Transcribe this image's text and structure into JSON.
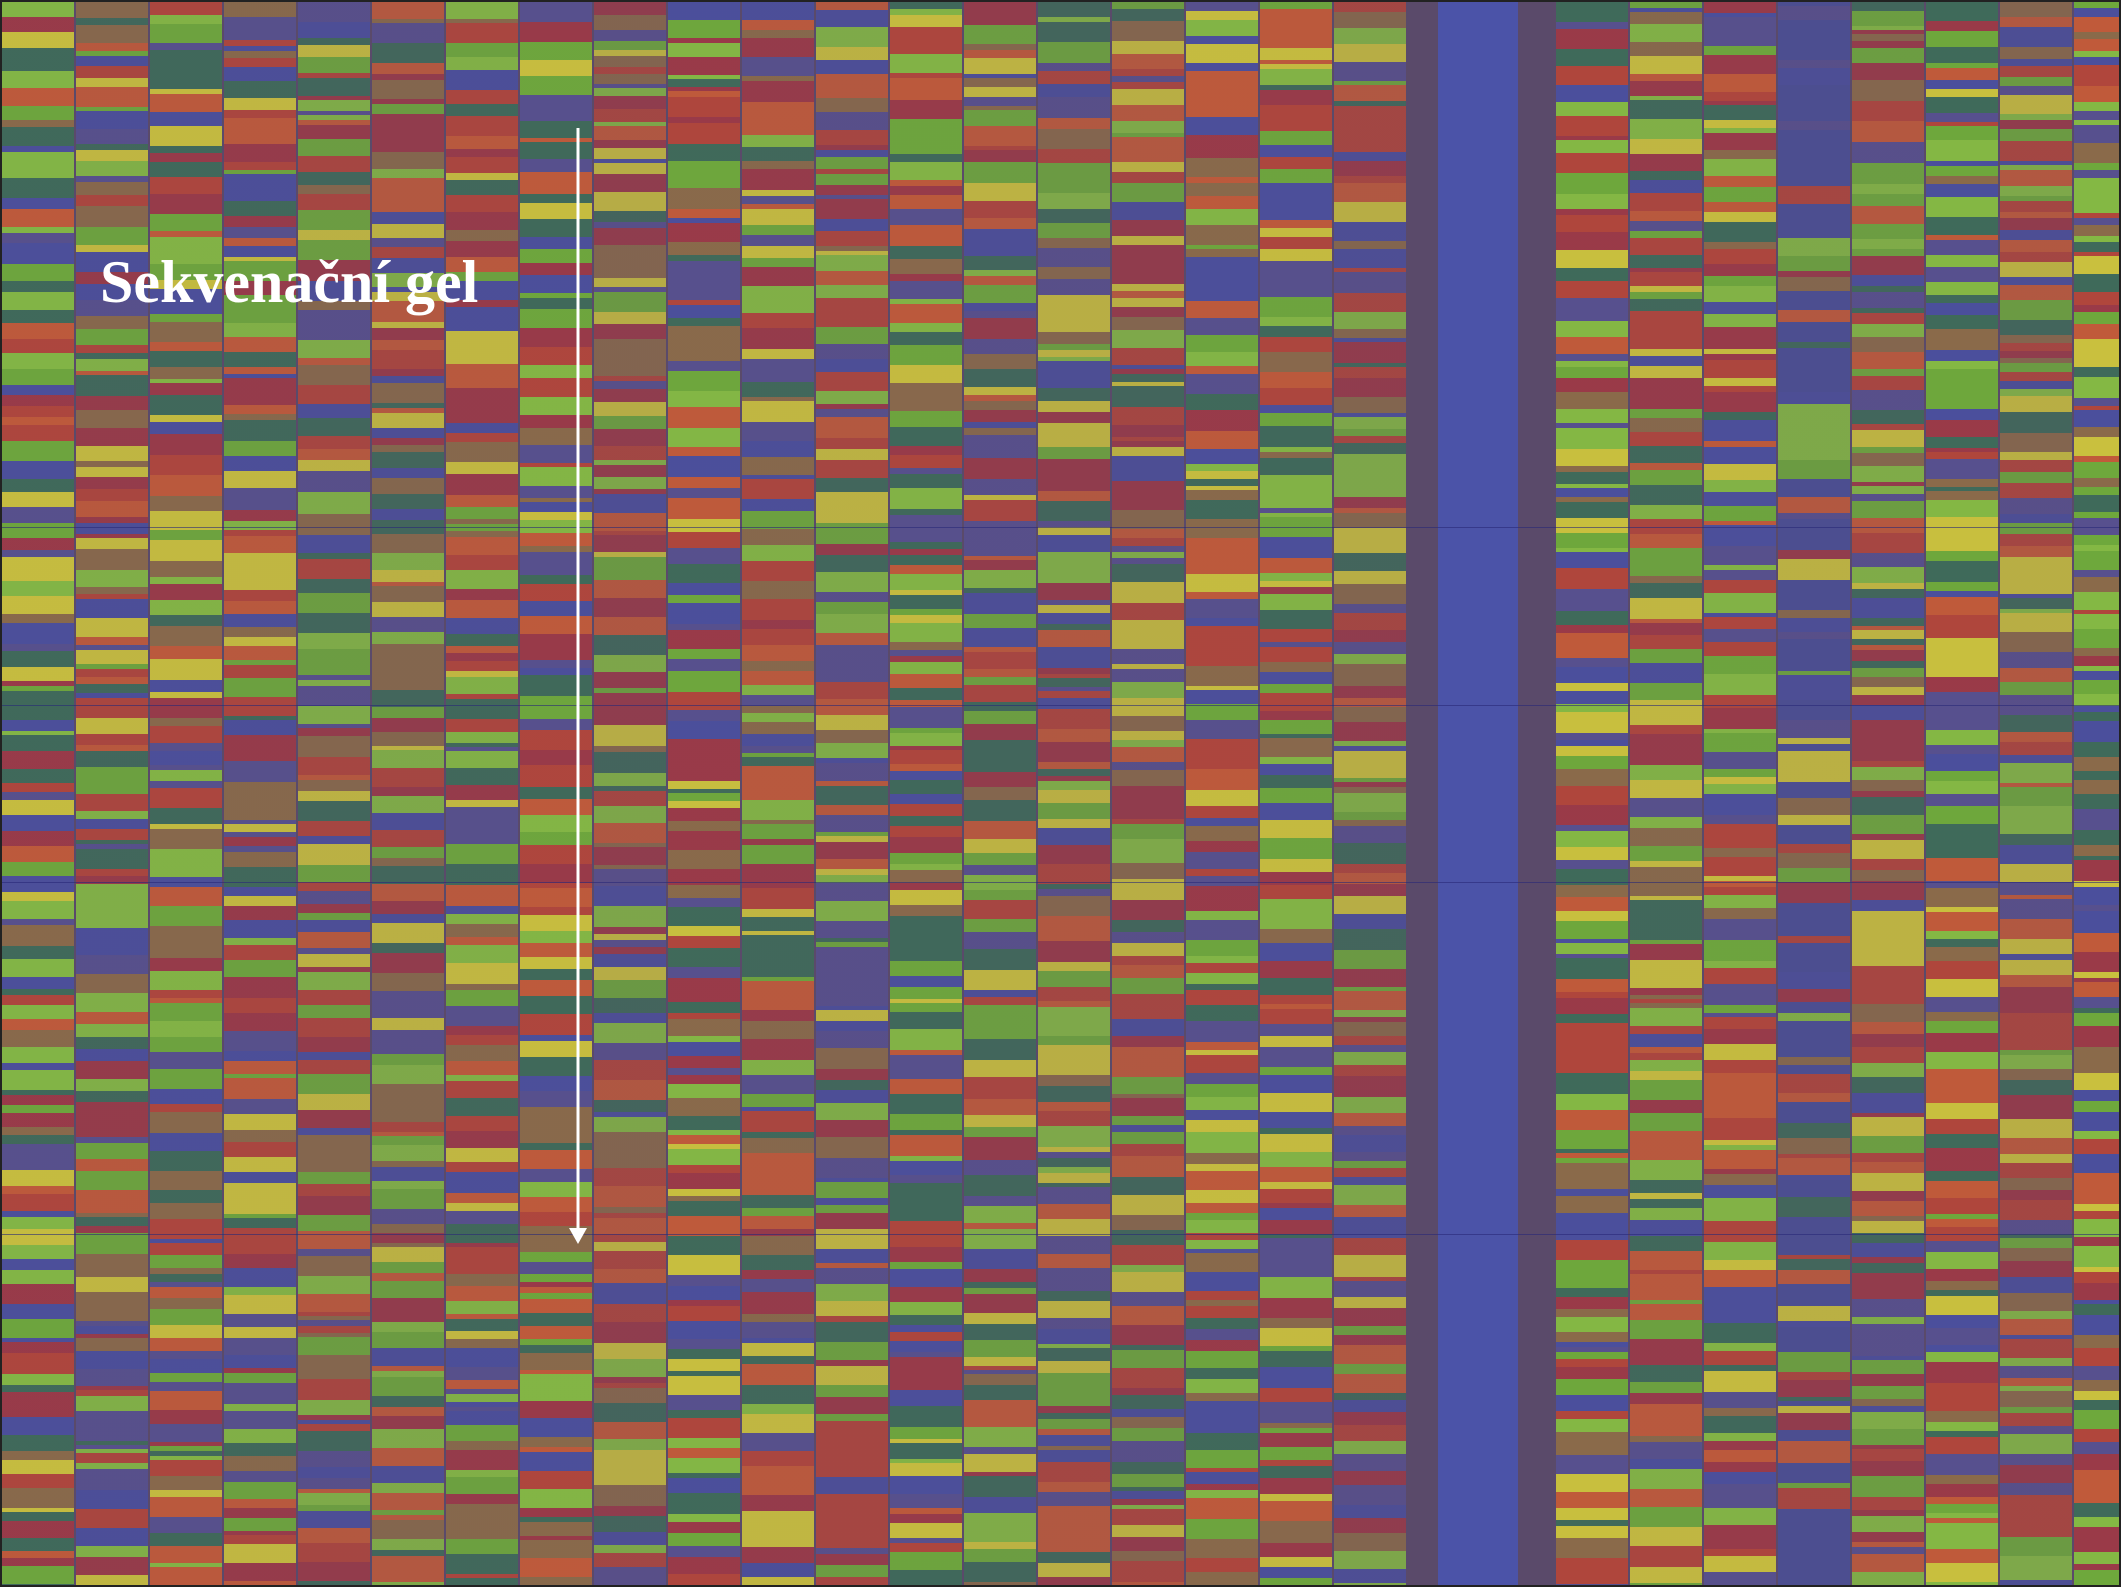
{
  "label": "Sekvenační gel"
}
